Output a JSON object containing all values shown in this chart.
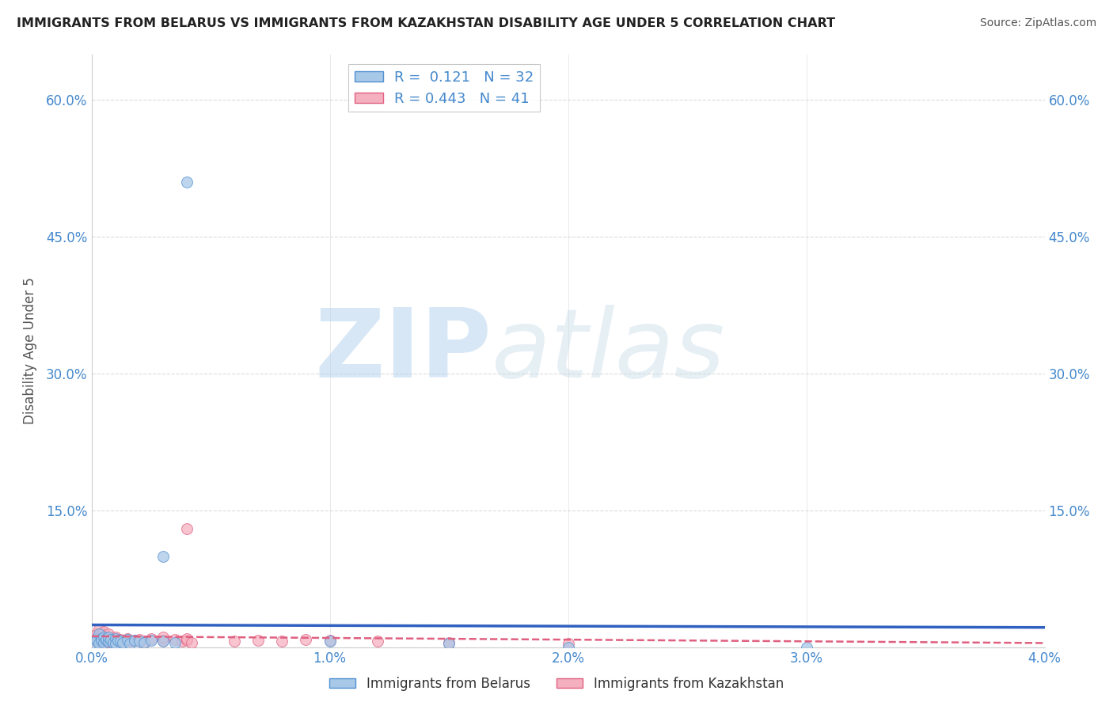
{
  "title": "IMMIGRANTS FROM BELARUS VS IMMIGRANTS FROM KAZAKHSTAN DISABILITY AGE UNDER 5 CORRELATION CHART",
  "source": "Source: ZipAtlas.com",
  "ylabel": "Disability Age Under 5",
  "xlim": [
    0.0,
    0.04
  ],
  "ylim": [
    0.0,
    0.65
  ],
  "xtick_vals": [
    0.0,
    0.01,
    0.02,
    0.03,
    0.04
  ],
  "xtick_labels": [
    "0.0%",
    "1.0%",
    "2.0%",
    "3.0%",
    "4.0%"
  ],
  "ytick_vals": [
    0.0,
    0.15,
    0.3,
    0.45,
    0.6
  ],
  "ytick_labels": [
    "",
    "15.0%",
    "30.0%",
    "45.0%",
    "60.0%"
  ],
  "belarus_color": "#a8c8e8",
  "kazakhstan_color": "#f5b0c0",
  "belarus_edge_color": "#5090d0",
  "kazakhstan_edge_color": "#e06080",
  "belarus_line_color": "#3060c0",
  "kazakhstan_line_color": "#e06080",
  "belarus_R": 0.121,
  "belarus_N": 32,
  "kazakhstan_R": 0.443,
  "kazakhstan_N": 41,
  "legend_label_1": "Immigrants from Belarus",
  "legend_label_2": "Immigrants from Kazakhstan",
  "watermark_zip": "ZIP",
  "watermark_atlas": "atlas",
  "background_color": "#ffffff",
  "grid_color": "#cccccc",
  "title_color": "#222222",
  "source_color": "#555555",
  "axis_label_color": "#4488cc",
  "ylabel_color": "#555555",
  "belarus_x": [
    0.0001,
    0.0002,
    0.0002,
    0.0003,
    0.0003,
    0.0004,
    0.0004,
    0.0005,
    0.0005,
    0.0006,
    0.0006,
    0.0007,
    0.0007,
    0.0008,
    0.0009,
    0.001,
    0.001,
    0.0011,
    0.0012,
    0.0013,
    0.0015,
    0.0016,
    0.0018,
    0.002,
    0.0022,
    0.0025,
    0.003,
    0.0035,
    0.01,
    0.015,
    0.02,
    0.03
  ],
  "belarus_y": [
    0.005,
    0.01,
    0.008,
    0.015,
    0.005,
    0.01,
    0.008,
    0.012,
    0.006,
    0.008,
    0.01,
    0.007,
    0.012,
    0.009,
    0.006,
    0.01,
    0.005,
    0.008,
    0.007,
    0.006,
    0.009,
    0.005,
    0.008,
    0.007,
    0.006,
    0.008,
    0.007,
    0.006,
    0.007,
    0.005,
    0.0,
    0.0
  ],
  "belarus_elevated_x": [
    0.003
  ],
  "belarus_elevated_y": [
    0.1
  ],
  "belarus_outlier_x": [
    0.004
  ],
  "belarus_outlier_y": [
    0.51
  ],
  "kazakhstan_x": [
    0.0001,
    0.0001,
    0.0002,
    0.0002,
    0.0003,
    0.0003,
    0.0004,
    0.0004,
    0.0005,
    0.0005,
    0.0006,
    0.0006,
    0.0007,
    0.0007,
    0.0008,
    0.0009,
    0.001,
    0.001,
    0.0012,
    0.0013,
    0.0015,
    0.0016,
    0.0018,
    0.002,
    0.0022,
    0.0025,
    0.003,
    0.003,
    0.0035,
    0.0038,
    0.004,
    0.004,
    0.0042,
    0.006,
    0.007,
    0.008,
    0.009,
    0.01,
    0.012,
    0.015,
    0.02
  ],
  "kazakhstan_y": [
    0.01,
    0.005,
    0.015,
    0.008,
    0.02,
    0.01,
    0.015,
    0.005,
    0.018,
    0.008,
    0.012,
    0.006,
    0.015,
    0.009,
    0.01,
    0.007,
    0.012,
    0.006,
    0.009,
    0.008,
    0.01,
    0.007,
    0.008,
    0.009,
    0.006,
    0.01,
    0.008,
    0.012,
    0.009,
    0.007,
    0.008,
    0.01,
    0.006,
    0.007,
    0.008,
    0.007,
    0.009,
    0.008,
    0.007,
    0.006,
    0.005
  ],
  "kazakhstan_elevated_x": [
    0.004
  ],
  "kazakhstan_elevated_y": [
    0.13
  ],
  "figsize": [
    14.06,
    8.92
  ],
  "dpi": 100
}
